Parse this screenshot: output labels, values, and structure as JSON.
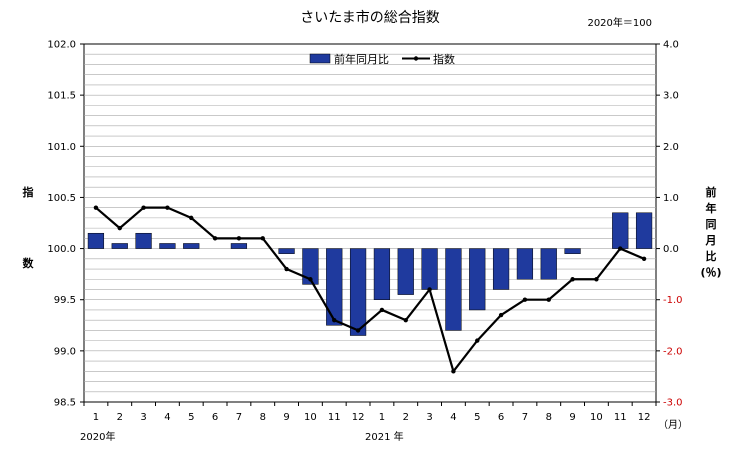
{
  "chart_data": {
    "type": "bar+line",
    "title": "さいたま市の総合指数",
    "base_note": "2020年＝100",
    "categories": [
      "1",
      "2",
      "3",
      "4",
      "5",
      "6",
      "7",
      "8",
      "9",
      "10",
      "11",
      "12",
      "1",
      "2",
      "3",
      "4",
      "5",
      "6",
      "7",
      "8",
      "9",
      "10",
      "11",
      "12"
    ],
    "x_unit": "（月）",
    "year_labels": [
      "2020年",
      "2021 年"
    ],
    "left_axis": {
      "label_chars": [
        "指",
        "数"
      ],
      "ylim": [
        98.5,
        102.0
      ],
      "ticks": [
        "98.5",
        "99.0",
        "99.5",
        "100.0",
        "100.5",
        "101.0",
        "101.5",
        "102.0"
      ]
    },
    "right_axis": {
      "label_chars": [
        "前",
        "年",
        "同",
        "月",
        "比",
        "(％)"
      ],
      "ylim": [
        -3.0,
        4.0
      ],
      "ticks": [
        "-3.0",
        "-2.0",
        "-1.0",
        "0.0",
        "1.0",
        "2.0",
        "3.0",
        "4.0"
      ]
    },
    "grid": true,
    "legend": {
      "position": "top-center",
      "bar_label": "前年同月比",
      "line_label": "指数"
    },
    "series": [
      {
        "name": "前年同月比",
        "type": "bar",
        "axis": "right",
        "color": "#1f3a9e",
        "values": [
          0.3,
          0.1,
          0.3,
          0.1,
          0.1,
          0.0,
          0.1,
          0.0,
          -0.1,
          -0.7,
          -1.5,
          -1.7,
          -1.0,
          -0.9,
          -0.8,
          -1.6,
          -1.2,
          -0.8,
          -0.6,
          -0.6,
          -0.1,
          0.0,
          0.7,
          0.7
        ]
      },
      {
        "name": "指数",
        "type": "line",
        "axis": "left",
        "color": "#000000",
        "values": [
          100.4,
          100.2,
          100.4,
          100.4,
          100.3,
          100.1,
          100.1,
          100.1,
          99.8,
          99.7,
          99.3,
          99.2,
          99.4,
          99.3,
          99.6,
          98.8,
          99.1,
          99.35,
          99.5,
          99.5,
          99.7,
          99.7,
          100.0,
          99.9
        ]
      }
    ]
  }
}
